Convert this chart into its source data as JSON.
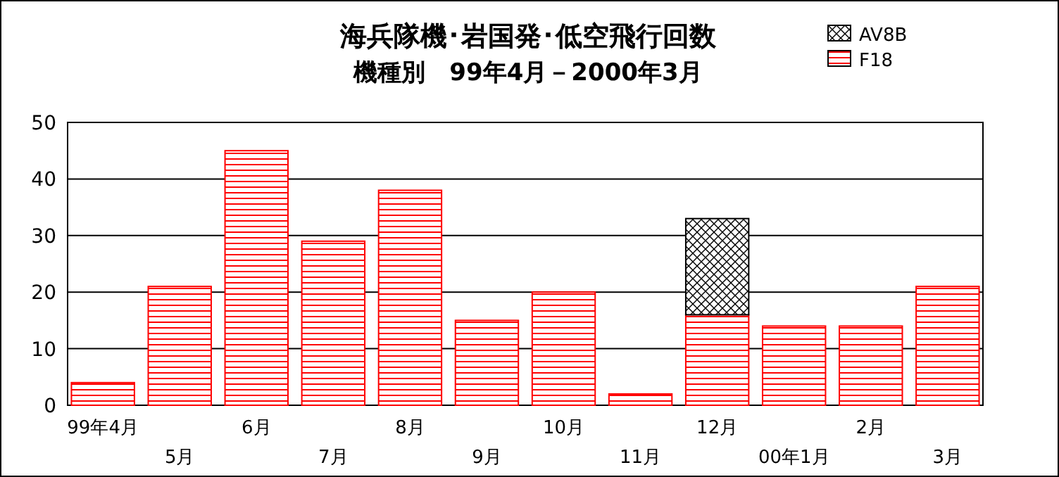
{
  "chart_data": {
    "type": "bar",
    "title": "海兵隊機･岩国発･低空飛行回数",
    "subtitle": "機種別　99年4月－2000年3月",
    "categories": [
      "99年4月",
      "5月",
      "6月",
      "7月",
      "8月",
      "9月",
      "10月",
      "11月",
      "12月",
      "00年1月",
      "2月",
      "3月"
    ],
    "stacked": true,
    "series": [
      {
        "name": "F18",
        "color": "#ff0000",
        "values": [
          4,
          21,
          45,
          29,
          38,
          15,
          20,
          2,
          16,
          14,
          14,
          21
        ]
      },
      {
        "name": "AV8B",
        "color": "#000000",
        "values": [
          null,
          null,
          null,
          null,
          null,
          null,
          null,
          null,
          17,
          null,
          null,
          null
        ]
      }
    ],
    "ylim": [
      0,
      50
    ],
    "yticks": [
      0,
      10,
      20,
      30,
      40,
      50
    ],
    "grid": "y",
    "legend": "top right"
  }
}
